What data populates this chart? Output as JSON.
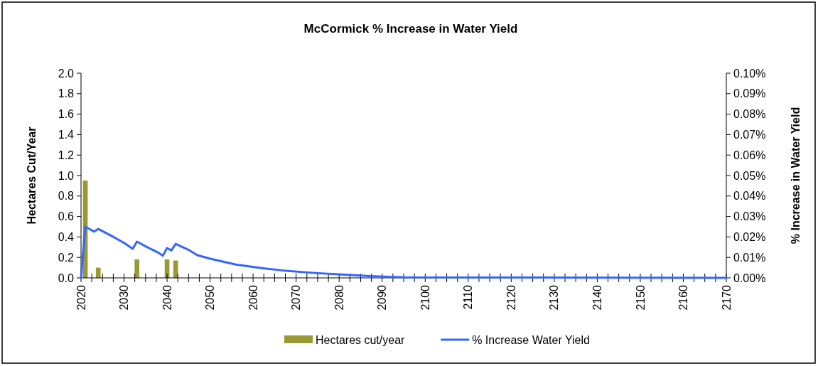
{
  "chart_data": {
    "type": "bar",
    "title": "McCormick % Increase in Water Yield",
    "ylabel": "Hectares Cut/Year",
    "y2label": "% Increase in Water Yield",
    "xlim": [
      2020,
      2170
    ],
    "xticks": [
      2020,
      {
        "value": 2022.5,
        "label": null
      },
      {
        "value": 2025,
        "label": null
      },
      {
        "value": 2027.5,
        "label": null
      },
      2030,
      {
        "value": 2032.5,
        "label": null
      },
      {
        "value": 2035,
        "label": null
      },
      {
        "value": 2037.5,
        "label": null
      },
      2040,
      {
        "value": 2042.5,
        "label": null
      },
      {
        "value": 2045,
        "label": null
      },
      {
        "value": 2047.5,
        "label": null
      },
      2050,
      {
        "value": 2052.5,
        "label": null
      },
      {
        "value": 2055,
        "label": null
      },
      {
        "value": 2057.5,
        "label": null
      },
      2060,
      {
        "value": 2062.5,
        "label": null
      },
      {
        "value": 2065,
        "label": null
      },
      {
        "value": 2067.5,
        "label": null
      },
      2070,
      {
        "value": 2072.5,
        "label": null
      },
      {
        "value": 2075,
        "label": null
      },
      {
        "value": 2077.5,
        "label": null
      },
      2080,
      {
        "value": 2082.5,
        "label": null
      },
      {
        "value": 2085,
        "label": null
      },
      {
        "value": 2087.5,
        "label": null
      },
      2090,
      {
        "value": 2092.5,
        "label": null
      },
      {
        "value": 2095,
        "label": null
      },
      {
        "value": 2097.5,
        "label": null
      },
      2100,
      {
        "value": 2102.5,
        "label": null
      },
      {
        "value": 2105,
        "label": null
      },
      {
        "value": 2107.5,
        "label": null
      },
      2110,
      {
        "value": 2112.5,
        "label": null
      },
      {
        "value": 2115,
        "label": null
      },
      {
        "value": 2117.5,
        "label": null
      },
      2120,
      {
        "value": 2122.5,
        "label": null
      },
      {
        "value": 2125,
        "label": null
      },
      {
        "value": 2127.5,
        "label": null
      },
      2130,
      {
        "value": 2132.5,
        "label": null
      },
      {
        "value": 2135,
        "label": null
      },
      {
        "value": 2137.5,
        "label": null
      },
      2140,
      {
        "value": 2142.5,
        "label": null
      },
      {
        "value": 2145,
        "label": null
      },
      {
        "value": 2147.5,
        "label": null
      },
      2150,
      {
        "value": 2152.5,
        "label": null
      },
      {
        "value": 2155,
        "label": null
      },
      {
        "value": 2157.5,
        "label": null
      },
      2160,
      {
        "value": 2162.5,
        "label": null
      },
      {
        "value": 2165,
        "label": null
      },
      {
        "value": 2167.5,
        "label": null
      },
      2170
    ],
    "ylim": [
      0,
      2
    ],
    "yticks": [
      {
        "value": 0,
        "label": "0.0"
      },
      0.2,
      0.4,
      0.6,
      0.8,
      {
        "value": 1,
        "label": "1.0"
      },
      1.2,
      1.4,
      1.6,
      1.8,
      {
        "value": 2,
        "label": "2.0"
      }
    ],
    "y2lim": [
      0,
      0.1
    ],
    "y2ticks": [
      {
        "value": 0,
        "label": "0.00%"
      },
      {
        "value": 0.01,
        "label": "0.01%"
      },
      {
        "value": 0.02,
        "label": "0.02%"
      },
      {
        "value": 0.03,
        "label": "0.03%"
      },
      {
        "value": 0.04,
        "label": "0.04%"
      },
      {
        "value": 0.05,
        "label": "0.05%"
      },
      {
        "value": 0.06,
        "label": "0.06%"
      },
      {
        "value": 0.07,
        "label": "0.07%"
      },
      {
        "value": 0.08,
        "label": "0.08%"
      },
      {
        "value": 0.09,
        "label": "0.09%"
      },
      {
        "value": 0.1,
        "label": "0.10%"
      }
    ],
    "series": [
      {
        "name": "Hectares cut/year",
        "color": "#999933",
        "x": [
          2021,
          2024,
          2033,
          2040,
          2042
        ],
        "values": [
          0.95,
          0.1,
          0.18,
          0.18,
          0.17
        ]
      },
      {
        "name": "% Increase Water Yield",
        "type": "line",
        "axis": "y2",
        "color": "#3366ff",
        "x": [
          2020,
          2021,
          2023,
          2024,
          2027,
          2030,
          2032,
          2033,
          2035,
          2038,
          2039,
          2040,
          2041,
          2042,
          2045,
          2047,
          2050,
          2056,
          2062,
          2067,
          2075,
          2087,
          2095,
          2170
        ],
        "values": [
          0,
          0.025,
          0.0226,
          0.0239,
          0.0206,
          0.0171,
          0.0142,
          0.0177,
          0.0154,
          0.0123,
          0.0108,
          0.0146,
          0.0134,
          0.0166,
          0.0137,
          0.0111,
          0.0094,
          0.0065,
          0.0048,
          0.0036,
          0.0023,
          0.0009,
          0.0003,
          0
        ]
      }
    ],
    "legend": "bottom",
    "marker": "none",
    "grid": false
  }
}
